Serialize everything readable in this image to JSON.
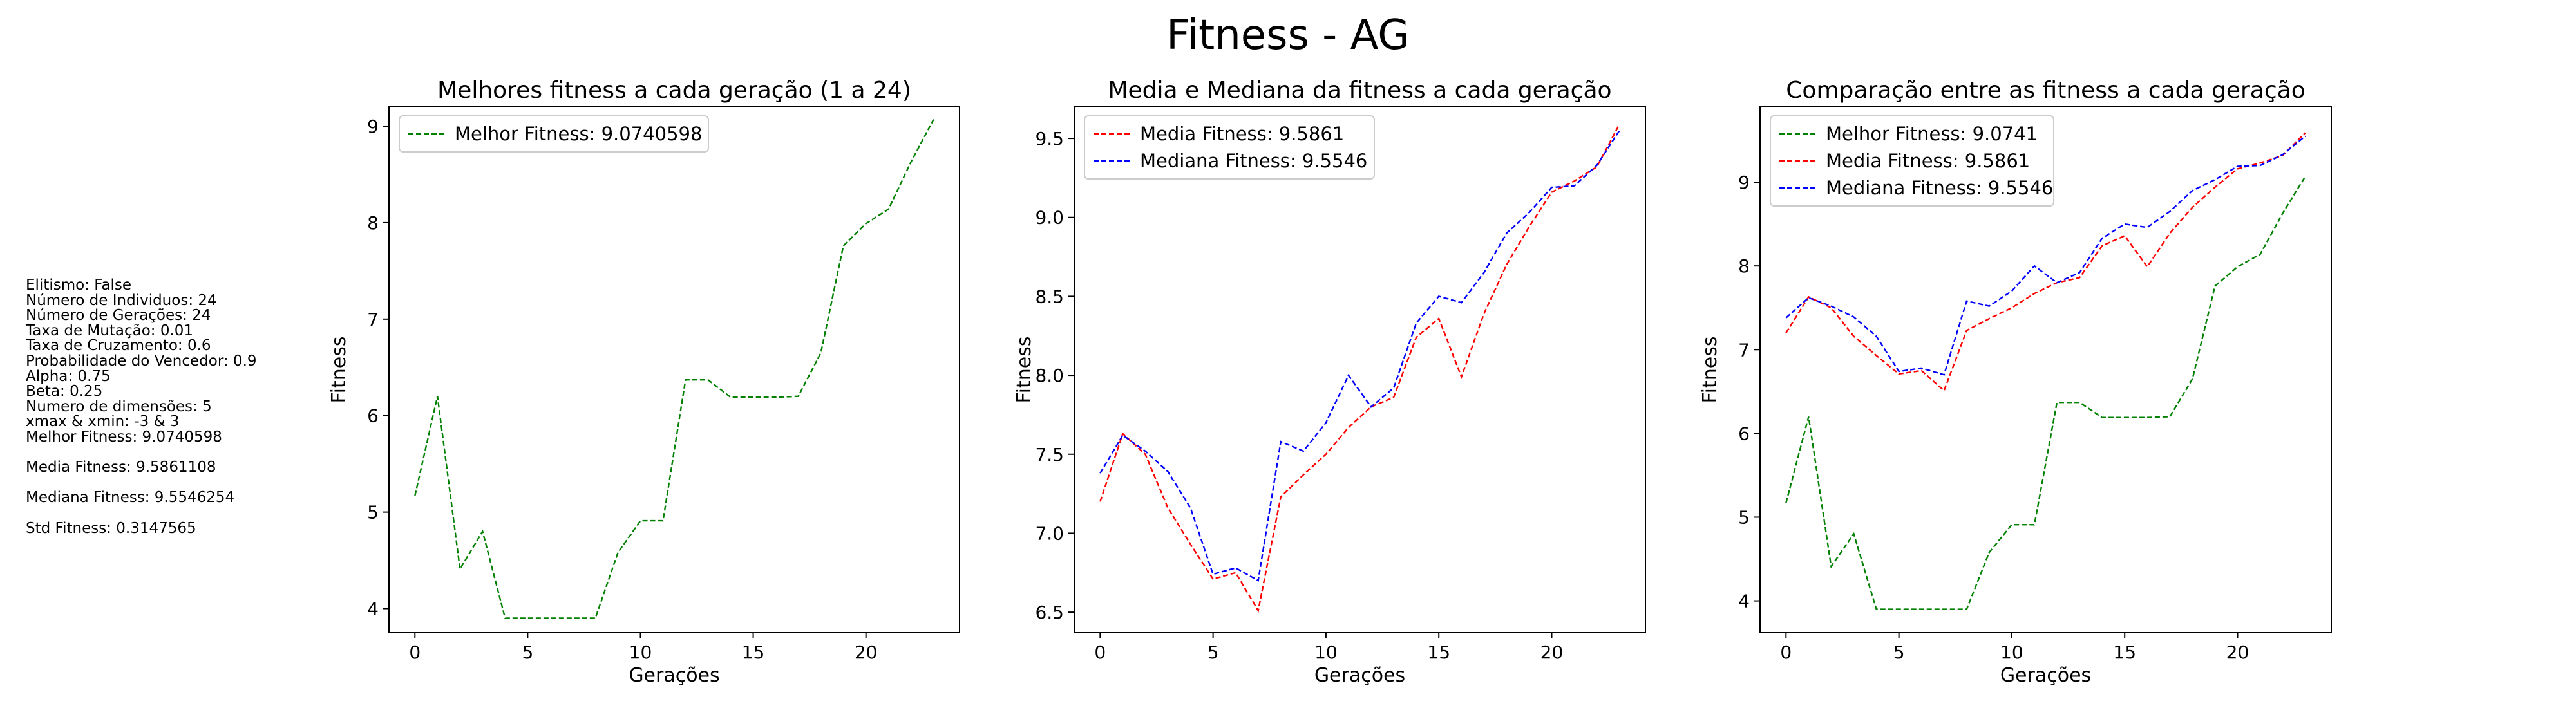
{
  "figure": {
    "title": "Fitness - AG"
  },
  "parameters": {
    "lines": [
      "Elitismo: False",
      "Número de Individuos: 24",
      "Número de Gerações: 24",
      "Taxa de Mutação: 0.01",
      "Taxa de Cruzamento: 0.6",
      "Probabilidade do Vencedor: 0.9",
      "Alpha: 0.75",
      "Beta: 0.25",
      "Numero de dimensões: 5",
      "xmax & xmin: -3 & 3",
      "Melhor Fitness: 9.0740598"
    ],
    "media": "Media Fitness: 9.5861108",
    "mediana": "Mediana Fitness: 9.5546254",
    "std": "Std Fitness: 0.3147565"
  },
  "colors": {
    "melhor": "#008000",
    "media": "#ff0000",
    "mediana": "#0000ff"
  },
  "chart_data": [
    {
      "type": "line",
      "title": "Melhores fitness a cada geração (1 a 24)",
      "xlabel": "Gerações",
      "ylabel": "Fitness",
      "xlim": [
        -1.15,
        24.15
      ],
      "ylim": [
        3.75,
        9.2
      ],
      "xticks": [
        0,
        5,
        10,
        15,
        20
      ],
      "yticks": [
        4,
        5,
        6,
        7,
        8,
        9
      ],
      "legend": "top-left",
      "x": [
        0,
        1,
        2,
        3,
        4,
        5,
        6,
        7,
        8,
        9,
        10,
        11,
        12,
        13,
        14,
        15,
        16,
        17,
        18,
        19,
        20,
        21,
        22,
        23
      ],
      "series": [
        {
          "name": "Melhor Fitness: 9.0740598",
          "color": "#008000",
          "values": [
            5.17,
            6.2,
            4.41,
            4.8,
            3.9,
            3.9,
            3.9,
            3.9,
            3.9,
            4.58,
            4.91,
            4.91,
            6.37,
            6.37,
            6.19,
            6.19,
            6.19,
            6.2,
            6.65,
            7.76,
            7.99,
            8.14,
            8.63,
            9.07
          ]
        }
      ]
    },
    {
      "type": "line",
      "title": "Media e Mediana da fitness a cada geração",
      "xlabel": "Gerações",
      "ylabel": "Fitness",
      "xlim": [
        -1.15,
        24.15
      ],
      "ylim": [
        6.37,
        9.7
      ],
      "xticks": [
        0,
        5,
        10,
        15,
        20
      ],
      "yticks": [
        6.5,
        7.0,
        7.5,
        8.0,
        8.5,
        9.0,
        9.5
      ],
      "ytick_labels": [
        "6.5",
        "7.0",
        "7.5",
        "8.0",
        "8.5",
        "9.0",
        "9.5"
      ],
      "legend": "top-left",
      "x": [
        0,
        1,
        2,
        3,
        4,
        5,
        6,
        7,
        8,
        9,
        10,
        11,
        12,
        13,
        14,
        15,
        16,
        17,
        18,
        19,
        20,
        21,
        22,
        23
      ],
      "series": [
        {
          "name": "Media Fitness: 9.5861",
          "color": "#ff0000",
          "values": [
            7.2,
            7.63,
            7.5,
            7.16,
            6.93,
            6.71,
            6.75,
            6.51,
            7.23,
            7.37,
            7.5,
            7.67,
            7.8,
            7.86,
            8.24,
            8.36,
            7.99,
            8.39,
            8.7,
            8.94,
            9.16,
            9.23,
            9.32,
            9.59
          ]
        },
        {
          "name": "Mediana Fitness: 9.5546",
          "color": "#0000ff",
          "values": [
            7.38,
            7.62,
            7.52,
            7.39,
            7.16,
            6.74,
            6.78,
            6.7,
            7.58,
            7.52,
            7.7,
            8.0,
            7.8,
            7.92,
            8.33,
            8.5,
            8.46,
            8.65,
            8.9,
            9.03,
            9.19,
            9.2,
            9.33,
            9.55
          ]
        }
      ]
    },
    {
      "type": "line",
      "title": "Comparação entre as fitness a cada geração",
      "xlabel": "Gerações",
      "ylabel": "Fitness",
      "xlim": [
        -1.15,
        24.15
      ],
      "ylim": [
        3.62,
        9.9
      ],
      "xticks": [
        0,
        5,
        10,
        15,
        20
      ],
      "yticks": [
        4,
        5,
        6,
        7,
        8,
        9
      ],
      "legend": "top-left",
      "x": [
        0,
        1,
        2,
        3,
        4,
        5,
        6,
        7,
        8,
        9,
        10,
        11,
        12,
        13,
        14,
        15,
        16,
        17,
        18,
        19,
        20,
        21,
        22,
        23
      ],
      "series": [
        {
          "name": "Melhor Fitness: 9.0741",
          "color": "#008000",
          "values": [
            5.17,
            6.2,
            4.41,
            4.8,
            3.9,
            3.9,
            3.9,
            3.9,
            3.9,
            4.58,
            4.91,
            4.91,
            6.37,
            6.37,
            6.19,
            6.19,
            6.19,
            6.2,
            6.65,
            7.76,
            7.99,
            8.14,
            8.63,
            9.07
          ]
        },
        {
          "name": "Media Fitness: 9.5861",
          "color": "#ff0000",
          "values": [
            7.2,
            7.63,
            7.5,
            7.16,
            6.93,
            6.71,
            6.75,
            6.51,
            7.23,
            7.37,
            7.5,
            7.67,
            7.8,
            7.86,
            8.24,
            8.36,
            7.99,
            8.39,
            8.7,
            8.94,
            9.16,
            9.23,
            9.32,
            9.59
          ]
        },
        {
          "name": "Mediana Fitness: 9.5546",
          "color": "#0000ff",
          "values": [
            7.38,
            7.62,
            7.52,
            7.39,
            7.16,
            6.74,
            6.78,
            6.7,
            7.58,
            7.52,
            7.7,
            8.0,
            7.8,
            7.92,
            8.33,
            8.5,
            8.46,
            8.65,
            8.9,
            9.03,
            9.19,
            9.2,
            9.33,
            9.55
          ]
        }
      ]
    }
  ]
}
